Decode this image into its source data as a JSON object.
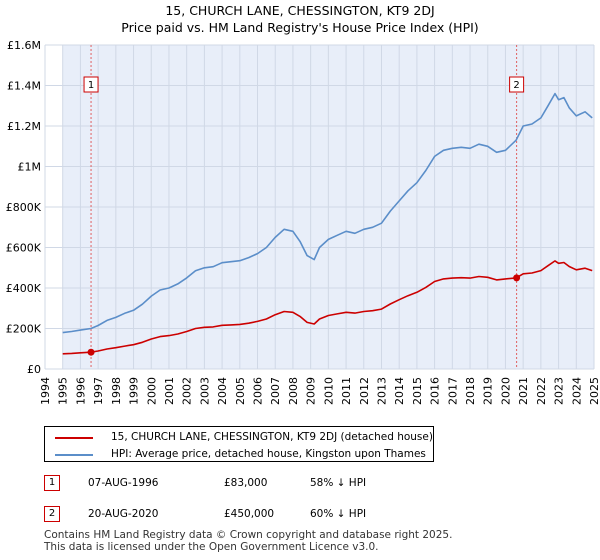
{
  "header": {
    "title_line1": "15, CHURCH LANE, CHESSINGTON, KT9 2DJ",
    "title_line2": "Price paid vs. HM Land Registry's House Price Index (HPI)"
  },
  "legend": {
    "items": [
      {
        "label": "15, CHURCH LANE, CHESSINGTON, KT9 2DJ (detached house)",
        "color": "#cc0000"
      },
      {
        "label": "HPI: Average price, detached house, Kingston upon Thames",
        "color": "#5b8ec9"
      }
    ]
  },
  "transactions": [
    {
      "num": "1",
      "date": "07-AUG-1996",
      "price": "£83,000",
      "hpi_change": "58% ↓ HPI"
    },
    {
      "num": "2",
      "date": "20-AUG-2020",
      "price": "£450,000",
      "hpi_change": "60% ↓ HPI"
    }
  ],
  "footer": {
    "line1": "Contains HM Land Registry data © Crown copyright and database right 2025.",
    "line2": "This data is licensed under the Open Government Licence v3.0."
  },
  "chart_data": {
    "type": "line",
    "title": "15, CHURCH LANE, CHESSINGTON, KT9 2DJ — Price paid vs. HM Land Registry's House Price Index (HPI)",
    "xlim": [
      1994,
      2025
    ],
    "ylim": [
      0,
      1600000
    ],
    "x_ticks": [
      "1994",
      "1995",
      "1996",
      "1997",
      "1998",
      "1999",
      "2000",
      "2001",
      "2002",
      "2003",
      "2004",
      "2005",
      "2006",
      "2007",
      "2008",
      "2009",
      "2010",
      "2011",
      "2012",
      "2013",
      "2014",
      "2015",
      "2016",
      "2017",
      "2018",
      "2019",
      "2020",
      "2021",
      "2022",
      "2023",
      "2024",
      "2025"
    ],
    "y_ticks": [
      {
        "value": 0,
        "label": "£0"
      },
      {
        "value": 200000,
        "label": "£200K"
      },
      {
        "value": 400000,
        "label": "£400K"
      },
      {
        "value": 600000,
        "label": "£600K"
      },
      {
        "value": 800000,
        "label": "£800K"
      },
      {
        "value": 1000000,
        "label": "£1M"
      },
      {
        "value": 1200000,
        "label": "£1.2M"
      },
      {
        "value": 1400000,
        "label": "£1.4M"
      },
      {
        "value": 1600000,
        "label": "£1.6M"
      }
    ],
    "shaded_range": [
      1995,
      2025
    ],
    "series": [
      {
        "name": "HPI: Average price, detached house, Kingston upon Thames",
        "color": "#5b8ec9",
        "x": [
          1995.0,
          1995.5,
          1996.0,
          1996.6,
          1997.0,
          1997.5,
          1998.0,
          1998.5,
          1999.0,
          1999.5,
          2000.0,
          2000.5,
          2001.0,
          2001.5,
          2002.0,
          2002.5,
          2003.0,
          2003.5,
          2004.0,
          2004.5,
          2005.0,
          2005.5,
          2006.0,
          2006.5,
          2007.0,
          2007.5,
          2008.0,
          2008.4,
          2008.8,
          2009.2,
          2009.5,
          2010.0,
          2010.5,
          2011.0,
          2011.5,
          2012.0,
          2012.5,
          2013.0,
          2013.5,
          2014.0,
          2014.5,
          2015.0,
          2015.5,
          2016.0,
          2016.5,
          2017.0,
          2017.5,
          2018.0,
          2018.5,
          2019.0,
          2019.5,
          2020.0,
          2020.6,
          2021.0,
          2021.5,
          2022.0,
          2022.4,
          2022.8,
          2023.0,
          2023.3,
          2023.6,
          2024.0,
          2024.5,
          2024.9
        ],
        "values": [
          180000,
          185000,
          192000,
          200000,
          215000,
          240000,
          255000,
          275000,
          290000,
          320000,
          360000,
          390000,
          400000,
          420000,
          450000,
          485000,
          500000,
          505000,
          525000,
          530000,
          535000,
          550000,
          570000,
          600000,
          650000,
          690000,
          680000,
          630000,
          560000,
          540000,
          600000,
          640000,
          660000,
          680000,
          670000,
          690000,
          700000,
          720000,
          780000,
          830000,
          880000,
          920000,
          980000,
          1050000,
          1080000,
          1090000,
          1095000,
          1090000,
          1110000,
          1100000,
          1070000,
          1080000,
          1130000,
          1200000,
          1210000,
          1240000,
          1300000,
          1360000,
          1330000,
          1340000,
          1290000,
          1250000,
          1270000,
          1240000
        ]
      },
      {
        "name": "15, CHURCH LANE, CHESSINGTON, KT9 2DJ (detached house)",
        "color": "#cc0000",
        "x": [
          1995.0,
          1995.5,
          1996.0,
          1996.6,
          1997.0,
          1997.5,
          1998.0,
          1998.5,
          1999.0,
          1999.5,
          2000.0,
          2000.5,
          2001.0,
          2001.5,
          2002.0,
          2002.5,
          2003.0,
          2003.5,
          2004.0,
          2004.5,
          2005.0,
          2005.5,
          2006.0,
          2006.5,
          2007.0,
          2007.5,
          2008.0,
          2008.4,
          2008.8,
          2009.2,
          2009.5,
          2010.0,
          2010.5,
          2011.0,
          2011.5,
          2012.0,
          2012.5,
          2013.0,
          2013.5,
          2014.0,
          2014.5,
          2015.0,
          2015.5,
          2016.0,
          2016.5,
          2017.0,
          2017.5,
          2018.0,
          2018.5,
          2019.0,
          2019.5,
          2020.0,
          2020.6,
          2021.0,
          2021.5,
          2022.0,
          2022.4,
          2022.8,
          2023.0,
          2023.3,
          2023.6,
          2024.0,
          2024.5,
          2024.9
        ],
        "values": [
          75000,
          77000,
          80000,
          83000,
          89000,
          99000,
          105000,
          113000,
          120000,
          132000,
          148000,
          160000,
          165000,
          173000,
          185000,
          200000,
          206000,
          208000,
          216000,
          218000,
          220000,
          226000,
          235000,
          247000,
          268000,
          284000,
          280000,
          260000,
          230000,
          222000,
          247000,
          264000,
          272000,
          280000,
          276000,
          284000,
          288000,
          296000,
          321000,
          342000,
          362000,
          379000,
          403000,
          432000,
          445000,
          449000,
          451000,
          449000,
          457000,
          453000,
          440000,
          445000,
          450000,
          470000,
          474000,
          486000,
          510000,
          534000,
          522000,
          526000,
          506000,
          490000,
          498000,
          486000
        ]
      }
    ],
    "markers": [
      {
        "label": "1",
        "x": 1996.6,
        "value": 83000
      },
      {
        "label": "2",
        "x": 2020.63,
        "value": 450000
      }
    ]
  }
}
